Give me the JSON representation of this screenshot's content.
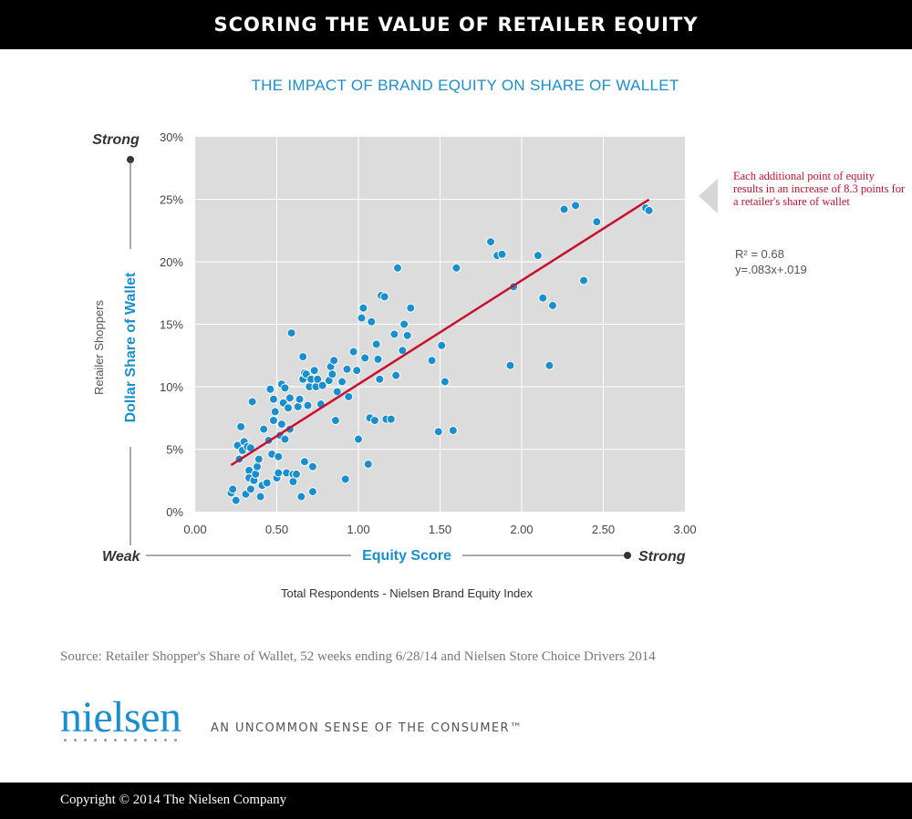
{
  "header": {
    "title": "SCORING THE VALUE OF RETAILER EQUITY"
  },
  "annotation": {
    "text": "Each additional point of equity results in an increase of 8.3 points for a retailer's share of wallet",
    "r_squared": "R² = 0.68",
    "equation": "y=.083x+.019"
  },
  "chart_data": {
    "type": "scatter",
    "title": "THE IMPACT OF BRAND EQUITY ON SHARE OF WALLET",
    "xlabel": "Equity Score",
    "x_caption": "Total Respondents - Nielsen Brand Equity Index",
    "x_weak_label": "Weak",
    "x_strong_label": "Strong",
    "ylabel_primary": "Dollar Share of Wallet",
    "ylabel_secondary": "Retailer Shoppers",
    "y_strong_label": "Strong",
    "xlim": [
      0,
      3
    ],
    "ylim": [
      0,
      30
    ],
    "x_ticks": [
      "0.00",
      "0.50",
      "1.00",
      "1.50",
      "2.00",
      "2.50",
      "3.00"
    ],
    "y_ticks": [
      "0%",
      "5%",
      "10%",
      "15%",
      "20%",
      "25%",
      "30%"
    ],
    "trendline": {
      "slope": 8.3,
      "intercept": 1.9,
      "x_range": [
        0.22,
        2.78
      ]
    },
    "points": [
      [
        0.22,
        1.5
      ],
      [
        0.23,
        1.8
      ],
      [
        0.25,
        0.9
      ],
      [
        0.26,
        5.3
      ],
      [
        0.27,
        4.2
      ],
      [
        0.28,
        6.8
      ],
      [
        0.29,
        4.9
      ],
      [
        0.3,
        5.6
      ],
      [
        0.31,
        1.4
      ],
      [
        0.32,
        5.2
      ],
      [
        0.33,
        3.3
      ],
      [
        0.33,
        2.7
      ],
      [
        0.34,
        1.8
      ],
      [
        0.34,
        5.1
      ],
      [
        0.35,
        8.8
      ],
      [
        0.36,
        2.5
      ],
      [
        0.37,
        3.0
      ],
      [
        0.38,
        3.6
      ],
      [
        0.39,
        4.2
      ],
      [
        0.4,
        1.2
      ],
      [
        0.41,
        2.1
      ],
      [
        0.42,
        6.6
      ],
      [
        0.44,
        2.3
      ],
      [
        0.45,
        5.7
      ],
      [
        0.46,
        9.8
      ],
      [
        0.47,
        4.6
      ],
      [
        0.48,
        9.0
      ],
      [
        0.48,
        7.3
      ],
      [
        0.49,
        8.0
      ],
      [
        0.5,
        2.7
      ],
      [
        0.51,
        3.1
      ],
      [
        0.51,
        4.4
      ],
      [
        0.52,
        6.1
      ],
      [
        0.53,
        10.2
      ],
      [
        0.53,
        7.0
      ],
      [
        0.54,
        8.7
      ],
      [
        0.55,
        5.8
      ],
      [
        0.55,
        9.9
      ],
      [
        0.56,
        3.1
      ],
      [
        0.57,
        8.3
      ],
      [
        0.58,
        9.1
      ],
      [
        0.58,
        6.6
      ],
      [
        0.59,
        14.3
      ],
      [
        0.6,
        3.0
      ],
      [
        0.6,
        2.4
      ],
      [
        0.62,
        3.0
      ],
      [
        0.63,
        8.4
      ],
      [
        0.64,
        9.0
      ],
      [
        0.65,
        1.2
      ],
      [
        0.66,
        12.4
      ],
      [
        0.66,
        10.6
      ],
      [
        0.67,
        4.0
      ],
      [
        0.67,
        11.1
      ],
      [
        0.68,
        11.0
      ],
      [
        0.69,
        8.5
      ],
      [
        0.7,
        10.0
      ],
      [
        0.71,
        10.6
      ],
      [
        0.72,
        3.6
      ],
      [
        0.72,
        1.6
      ],
      [
        0.73,
        11.3
      ],
      [
        0.74,
        10.0
      ],
      [
        0.75,
        10.6
      ],
      [
        0.77,
        8.6
      ],
      [
        0.78,
        10.1
      ],
      [
        0.82,
        10.5
      ],
      [
        0.83,
        11.6
      ],
      [
        0.84,
        11.0
      ],
      [
        0.85,
        12.1
      ],
      [
        0.86,
        7.3
      ],
      [
        0.87,
        9.6
      ],
      [
        0.9,
        10.4
      ],
      [
        0.92,
        2.6
      ],
      [
        0.93,
        11.4
      ],
      [
        0.94,
        9.2
      ],
      [
        0.97,
        12.8
      ],
      [
        0.99,
        11.3
      ],
      [
        1.0,
        5.8
      ],
      [
        1.02,
        15.5
      ],
      [
        1.03,
        16.3
      ],
      [
        1.04,
        12.3
      ],
      [
        1.06,
        3.8
      ],
      [
        1.07,
        7.5
      ],
      [
        1.08,
        15.2
      ],
      [
        1.1,
        7.3
      ],
      [
        1.11,
        13.4
      ],
      [
        1.12,
        12.2
      ],
      [
        1.13,
        10.6
      ],
      [
        1.14,
        17.3
      ],
      [
        1.16,
        17.2
      ],
      [
        1.17,
        7.4
      ],
      [
        1.2,
        7.4
      ],
      [
        1.22,
        14.2
      ],
      [
        1.23,
        10.9
      ],
      [
        1.24,
        19.5
      ],
      [
        1.27,
        12.9
      ],
      [
        1.28,
        15.0
      ],
      [
        1.3,
        14.1
      ],
      [
        1.32,
        16.3
      ],
      [
        1.45,
        12.1
      ],
      [
        1.49,
        6.4
      ],
      [
        1.51,
        13.3
      ],
      [
        1.53,
        10.4
      ],
      [
        1.58,
        6.5
      ],
      [
        1.6,
        19.5
      ],
      [
        1.81,
        21.6
      ],
      [
        1.85,
        20.5
      ],
      [
        1.88,
        20.6
      ],
      [
        1.93,
        11.7
      ],
      [
        1.95,
        18.0
      ],
      [
        2.1,
        20.5
      ],
      [
        2.13,
        17.1
      ],
      [
        2.17,
        11.7
      ],
      [
        2.19,
        16.5
      ],
      [
        2.26,
        24.2
      ],
      [
        2.33,
        24.5
      ],
      [
        2.38,
        18.5
      ],
      [
        2.46,
        23.2
      ],
      [
        2.76,
        24.3
      ],
      [
        2.78,
        24.1
      ]
    ]
  },
  "source": {
    "text": "Source: Retailer Shopper's Share of Wallet, 52 weeks ending 6/28/14 and Nielsen Store Choice Drivers 2014"
  },
  "branding": {
    "logo_text": "nielsen",
    "tagline": "AN UNCOMMON SENSE OF THE CONSUMER™"
  },
  "footer": {
    "copyright": "Copyright © 2014 The Nielsen Company"
  },
  "colors": {
    "point": "#1a8fd0",
    "trend": "#c8102e",
    "plot_bg": "#dcdcdc",
    "accent": "#1a8fd0"
  }
}
